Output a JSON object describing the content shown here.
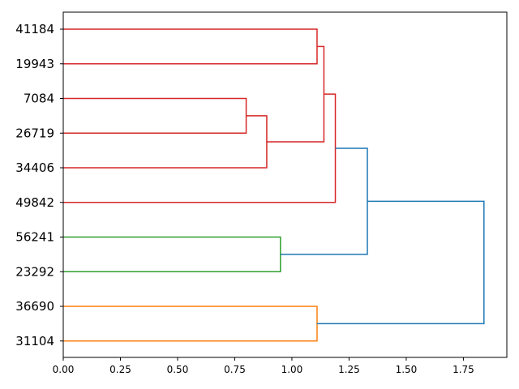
{
  "chart_data": {
    "type": "dendrogram",
    "orientation": "horizontal",
    "title": "",
    "xlabel": "",
    "ylabel": "",
    "xlim": [
      0,
      1.94
    ],
    "grid": false,
    "x_ticks": [
      0.0,
      0.25,
      0.5,
      0.75,
      1.0,
      1.25,
      1.5,
      1.75
    ],
    "x_tick_labels": [
      "0.00",
      "0.25",
      "0.50",
      "0.75",
      "1.00",
      "1.25",
      "1.50",
      "1.75"
    ],
    "leaves": [
      "41184",
      "19943",
      "7084",
      "26719",
      "34406",
      "49842",
      "56241",
      "23292",
      "36690",
      "31104"
    ],
    "colors": {
      "red": "#d62728",
      "green": "#2ca02c",
      "orange": "#ff7f0e",
      "blue": "#1f77b4"
    },
    "merges": [
      {
        "id": "a",
        "children": [
          "L:41184",
          "L:19943"
        ],
        "height": 1.11,
        "color": "red"
      },
      {
        "id": "b",
        "children": [
          "L:7084",
          "L:26719"
        ],
        "height": 0.8,
        "color": "red"
      },
      {
        "id": "c",
        "children": [
          "N:b",
          "L:34406"
        ],
        "height": 0.89,
        "color": "red"
      },
      {
        "id": "d",
        "children": [
          "N:a",
          "N:c"
        ],
        "height": 1.14,
        "color": "red"
      },
      {
        "id": "e",
        "children": [
          "N:d",
          "L:49842"
        ],
        "height": 1.19,
        "color": "red"
      },
      {
        "id": "f",
        "children": [
          "L:56241",
          "L:23292"
        ],
        "height": 0.95,
        "color": "green"
      },
      {
        "id": "g",
        "children": [
          "N:e",
          "N:f"
        ],
        "height": 1.33,
        "color": "blue"
      },
      {
        "id": "h",
        "children": [
          "L:36690",
          "L:31104"
        ],
        "height": 1.11,
        "color": "orange"
      },
      {
        "id": "i",
        "children": [
          "N:g",
          "N:h"
        ],
        "height": 1.84,
        "color": "blue"
      }
    ]
  }
}
